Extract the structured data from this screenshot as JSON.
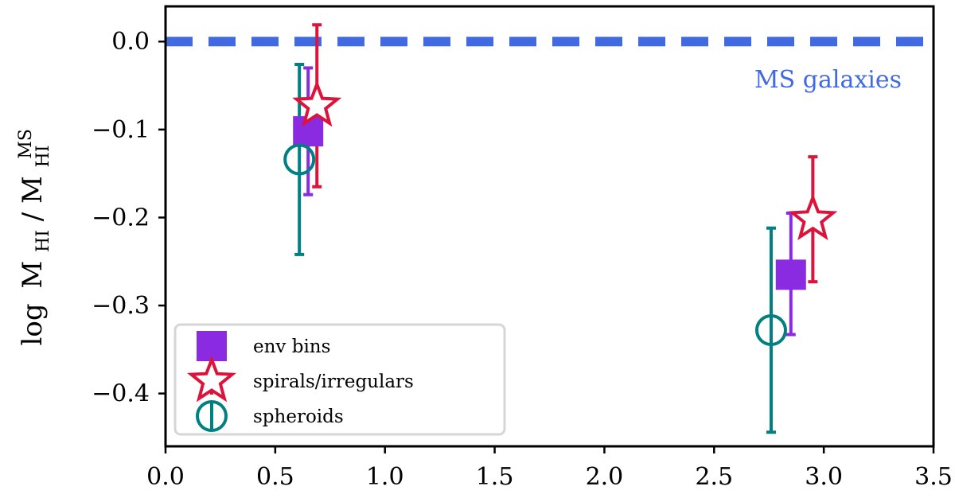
{
  "chart_data": {
    "type": "scatter",
    "title": "",
    "xlabel": "",
    "ylabel": {
      "log": "log",
      "numerator": "M",
      "numerator_sub": "HI",
      "slash": "/",
      "denominator": "M",
      "denominator_sub": "HI",
      "denominator_sup": "MS"
    },
    "xlim": [
      0.0,
      3.5
    ],
    "ylim": [
      -0.46,
      0.04
    ],
    "x_ticks": [
      "0.0",
      "0.5",
      "1.0",
      "1.5",
      "2.0",
      "2.5",
      "3.0",
      "3.5"
    ],
    "x_tick_values": [
      0.0,
      0.5,
      1.0,
      1.5,
      2.0,
      2.5,
      3.0,
      3.5
    ],
    "y_ticks": [
      "0.0",
      "−0.1",
      "−0.2",
      "−0.3",
      "−0.4"
    ],
    "y_tick_values": [
      0.0,
      -0.1,
      -0.2,
      -0.3,
      -0.4
    ],
    "grid": false,
    "legend_position": "lower-left",
    "reference_line": {
      "y": 0.0,
      "label": "MS galaxies",
      "color": "#4169e1",
      "style": "dashed"
    },
    "series": [
      {
        "name": "env bins",
        "marker": "square",
        "color": "#8a2be2",
        "points": [
          {
            "x": 0.65,
            "y": -0.102,
            "err_low": 0.072,
            "err_high": 0.072
          },
          {
            "x": 2.85,
            "y": -0.265,
            "err_low": 0.068,
            "err_high": 0.07
          }
        ]
      },
      {
        "name": "spirals/irregulars",
        "marker": "star",
        "color": "#dc143c",
        "points": [
          {
            "x": 0.69,
            "y": -0.073,
            "err_low": 0.092,
            "err_high": 0.092
          },
          {
            "x": 2.95,
            "y": -0.202,
            "err_low": 0.071,
            "err_high": 0.071
          }
        ]
      },
      {
        "name": "spheroids",
        "marker": "circle-open",
        "color": "#008080",
        "points": [
          {
            "x": 0.61,
            "y": -0.134,
            "err_low": 0.108,
            "err_high": 0.108
          },
          {
            "x": 2.76,
            "y": -0.328,
            "err_low": 0.116,
            "err_high": 0.116
          }
        ]
      }
    ]
  }
}
